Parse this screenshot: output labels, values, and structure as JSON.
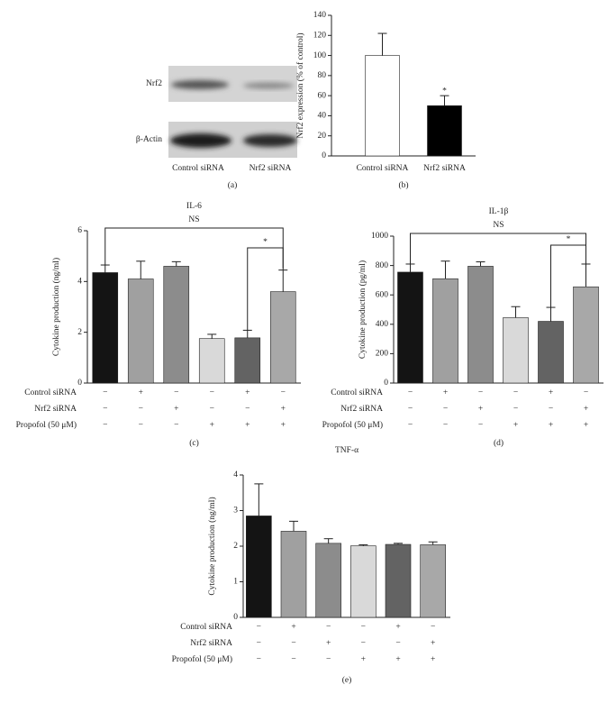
{
  "blot": {
    "rows": [
      "Nrf2",
      "β-Actin"
    ],
    "lanes": [
      "Control siRNA",
      "Nrf2 siRNA"
    ],
    "panel_label": "(a)"
  },
  "chart_data": [
    {
      "type": "bar",
      "panel_label": "(b)",
      "ylabel": "Nrf2 expression (% of control)",
      "categories": [
        "Control siRNA",
        "Nrf2 siRNA"
      ],
      "values": [
        100,
        50
      ],
      "errors": [
        22,
        10
      ],
      "colors": [
        "#ffffff",
        "#000000"
      ],
      "ylim": [
        0,
        140
      ],
      "yticks": [
        0,
        20,
        40,
        60,
        80,
        100,
        120,
        140
      ],
      "annotations": [
        "*"
      ]
    },
    {
      "type": "bar",
      "title": "IL-6",
      "panel_label": "(c)",
      "ylabel": "Cytokine production (ng/ml)",
      "values": [
        4.35,
        4.1,
        4.6,
        1.75,
        1.78,
        3.6
      ],
      "errors": [
        0.3,
        0.7,
        0.18,
        0.17,
        0.3,
        0.85
      ],
      "colors": [
        "#141414",
        "#a0a0a0",
        "#8c8c8c",
        "#d9d9d9",
        "#636363",
        "#a8a8a8"
      ],
      "ylim": [
        0,
        6
      ],
      "yticks": [
        0,
        2,
        4,
        6
      ],
      "annotations": [
        "NS",
        "*"
      ],
      "conditions": [
        {
          "label": "Control siRNA",
          "marks": [
            "−",
            "+",
            "−",
            "−",
            "+",
            "−"
          ]
        },
        {
          "label": "Nrf2 siRNA",
          "marks": [
            "−",
            "−",
            "+",
            "−",
            "−",
            "+"
          ]
        },
        {
          "label": "Propofol (50 μM)",
          "marks": [
            "−",
            "−",
            "−",
            "+",
            "+",
            "+"
          ]
        }
      ]
    },
    {
      "type": "bar",
      "title": "IL-1β",
      "panel_label": "(d)",
      "ylabel": "Cytokine production (pg/ml)",
      "values": [
        755,
        710,
        795,
        445,
        420,
        655
      ],
      "errors": [
        55,
        120,
        30,
        75,
        95,
        155
      ],
      "colors": [
        "#141414",
        "#a0a0a0",
        "#8c8c8c",
        "#d9d9d9",
        "#636363",
        "#a8a8a8"
      ],
      "ylim": [
        0,
        1000
      ],
      "yticks": [
        0,
        200,
        400,
        600,
        800,
        1000
      ],
      "annotations": [
        "NS",
        "*"
      ],
      "conditions": [
        {
          "label": "Control siRNA",
          "marks": [
            "−",
            "+",
            "−",
            "−",
            "+",
            "−"
          ]
        },
        {
          "label": "Nrf2 siRNA",
          "marks": [
            "−",
            "−",
            "+",
            "−",
            "−",
            "+"
          ]
        },
        {
          "label": "Propofol (50 μM)",
          "marks": [
            "−",
            "−",
            "−",
            "+",
            "+",
            "+"
          ]
        }
      ]
    },
    {
      "type": "bar",
      "title": "TNF-α",
      "panel_label": "(e)",
      "ylabel": "Cytokine production (ng/ml)",
      "values": [
        2.85,
        2.42,
        2.08,
        2.01,
        2.05,
        2.04
      ],
      "errors": [
        0.9,
        0.28,
        0.13,
        0.03,
        0.03,
        0.08
      ],
      "colors": [
        "#141414",
        "#a0a0a0",
        "#8c8c8c",
        "#d9d9d9",
        "#636363",
        "#a8a8a8"
      ],
      "ylim": [
        0,
        4
      ],
      "yticks": [
        0,
        1,
        2,
        3,
        4
      ],
      "conditions": [
        {
          "label": "Control siRNA",
          "marks": [
            "−",
            "+",
            "−",
            "−",
            "+",
            "−"
          ]
        },
        {
          "label": "Nrf2 siRNA",
          "marks": [
            "−",
            "−",
            "+",
            "−",
            "−",
            "+"
          ]
        },
        {
          "label": "Propofol (50 μM)",
          "marks": [
            "−",
            "−",
            "−",
            "+",
            "+",
            "+"
          ]
        }
      ]
    }
  ]
}
